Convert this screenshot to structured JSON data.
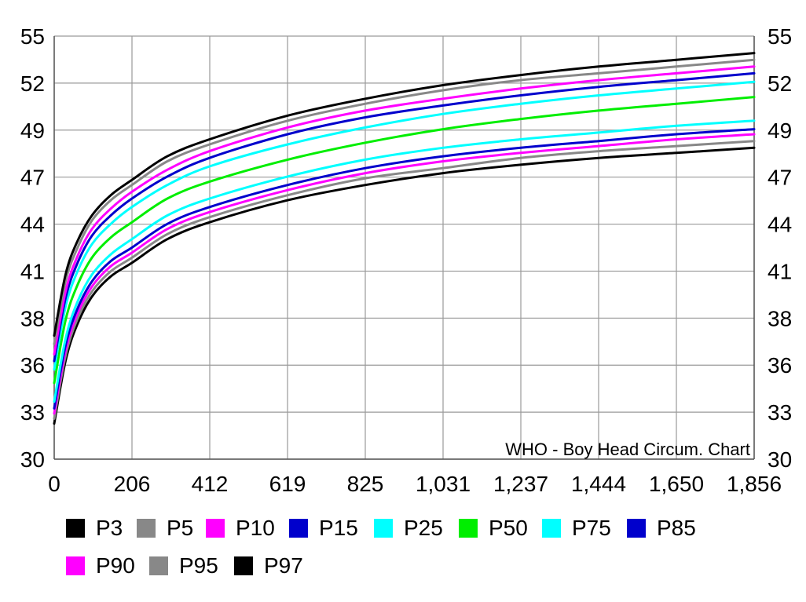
{
  "chart_data": {
    "type": "line",
    "title": "",
    "description_text": "WHO - Boy Head Circum. Chart",
    "xlabel": "",
    "ylabel": "",
    "xlim": [
      0,
      1856
    ],
    "ylim": [
      30,
      55
    ],
    "x_ticks": [
      "0",
      "206",
      "412",
      "619",
      "825",
      "1,031",
      "1,237",
      "1,444",
      "1,650",
      "1,856"
    ],
    "y_ticks": [
      "30",
      "33",
      "36",
      "38",
      "41",
      "44",
      "47",
      "49",
      "52",
      "55"
    ],
    "y_axis_right": true,
    "grid": true,
    "legend_position": "bottom",
    "x": [
      0,
      30,
      60,
      100,
      150,
      206,
      300,
      412,
      619,
      825,
      1031,
      1237,
      1444,
      1650,
      1856
    ],
    "series": [
      {
        "name": "P3",
        "color": "#000000",
        "values": [
          32.1,
          35.8,
          37.9,
          39.6,
          40.8,
          41.6,
          43.0,
          44.0,
          45.3,
          46.2,
          46.9,
          47.4,
          47.8,
          48.1,
          48.4
        ]
      },
      {
        "name": "P5",
        "color": "#888888",
        "values": [
          32.4,
          36.1,
          38.2,
          39.9,
          41.1,
          41.9,
          43.3,
          44.3,
          45.6,
          46.6,
          47.2,
          47.8,
          48.2,
          48.5,
          48.8
        ]
      },
      {
        "name": "P10",
        "color": "#ff00ff",
        "values": [
          32.7,
          36.4,
          38.5,
          40.2,
          41.4,
          42.2,
          43.6,
          44.6,
          45.9,
          46.9,
          47.6,
          48.1,
          48.5,
          48.9,
          49.2
        ]
      },
      {
        "name": "P15",
        "color": "#0000cc",
        "values": [
          33.0,
          36.7,
          38.8,
          40.5,
          41.7,
          42.5,
          43.9,
          44.9,
          46.2,
          47.2,
          47.9,
          48.4,
          48.8,
          49.2,
          49.5
        ]
      },
      {
        "name": "P25",
        "color": "#00ffff",
        "values": [
          33.4,
          37.1,
          39.2,
          40.9,
          42.1,
          43.0,
          44.4,
          45.4,
          46.7,
          47.7,
          48.4,
          48.9,
          49.3,
          49.7,
          50.0
        ]
      },
      {
        "name": "P50",
        "color": "#00ee00",
        "values": [
          34.5,
          38.2,
          40.2,
          41.9,
          43.1,
          44.0,
          45.4,
          46.4,
          47.7,
          48.7,
          49.5,
          50.1,
          50.6,
          51.0,
          51.4
        ]
      },
      {
        "name": "P75",
        "color": "#00ffff",
        "values": [
          35.3,
          39.0,
          41.0,
          42.7,
          43.9,
          44.9,
          46.2,
          47.3,
          48.6,
          49.6,
          50.4,
          51.0,
          51.5,
          51.9,
          52.3
        ]
      },
      {
        "name": "P85",
        "color": "#0000cc",
        "values": [
          35.8,
          39.5,
          41.5,
          43.2,
          44.4,
          45.4,
          46.7,
          47.8,
          49.2,
          50.2,
          50.9,
          51.5,
          52.0,
          52.4,
          52.8
        ]
      },
      {
        "name": "P90",
        "color": "#ff00ff",
        "values": [
          36.2,
          39.9,
          41.9,
          43.6,
          44.8,
          45.8,
          47.1,
          48.2,
          49.6,
          50.6,
          51.3,
          51.9,
          52.4,
          52.8,
          53.2
        ]
      },
      {
        "name": "P95",
        "color": "#888888",
        "values": [
          36.8,
          40.5,
          42.4,
          44.1,
          45.3,
          46.2,
          47.6,
          48.6,
          50.0,
          51.0,
          51.8,
          52.4,
          52.8,
          53.2,
          53.6
        ]
      },
      {
        "name": "P97",
        "color": "#000000",
        "values": [
          37.3,
          40.9,
          42.8,
          44.4,
          45.6,
          46.5,
          47.9,
          48.9,
          50.3,
          51.3,
          52.1,
          52.7,
          53.2,
          53.6,
          54.0
        ]
      }
    ]
  }
}
